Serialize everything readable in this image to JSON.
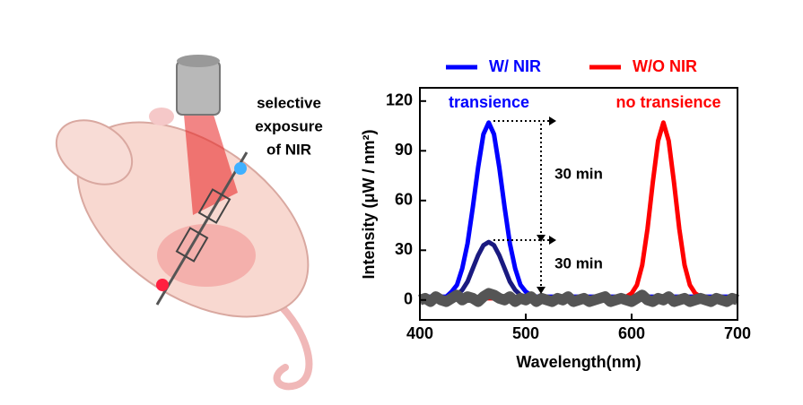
{
  "illustration": {
    "label_lines": [
      "selective",
      "exposure",
      "of NIR"
    ]
  },
  "chart_data": {
    "type": "line",
    "xlabel": "Wavelength(nm)",
    "ylabel": "Intensity (μW / nm²)",
    "annotations": [
      "transience",
      "no transience",
      "30 min",
      "30 min"
    ],
    "legend": "top",
    "xlim": [
      400,
      700
    ],
    "xticks": [
      400,
      500,
      600,
      700
    ],
    "ylim": [
      -12,
      128
    ],
    "yticks": [
      0,
      30,
      60,
      90,
      120
    ],
    "x": [
      400,
      405,
      410,
      415,
      420,
      425,
      430,
      435,
      440,
      445,
      450,
      455,
      460,
      465,
      470,
      475,
      480,
      485,
      490,
      495,
      500,
      505,
      510,
      515,
      520,
      525,
      530,
      535,
      540,
      545,
      550,
      555,
      560,
      565,
      570,
      575,
      580,
      585,
      590,
      595,
      600,
      605,
      610,
      615,
      620,
      625,
      630,
      635,
      640,
      645,
      650,
      655,
      660,
      665,
      670,
      675,
      680,
      685,
      690,
      695,
      700
    ],
    "series": [
      {
        "name": "W/ NIR",
        "color": "#0000ff",
        "values": [
          2,
          2,
          2,
          2,
          2,
          2,
          5,
          9,
          19,
          34,
          56,
          80,
          100,
          107,
          100,
          80,
          56,
          34,
          19,
          9,
          5,
          3,
          2,
          2,
          2,
          2,
          2,
          2,
          2,
          2,
          2,
          2,
          2,
          2,
          2,
          2,
          2,
          2,
          2,
          2,
          2,
          2,
          2,
          2,
          2,
          2,
          2,
          2,
          2,
          2,
          2,
          2,
          2,
          2,
          2,
          2,
          2,
          2,
          2,
          2,
          2
        ]
      },
      {
        "color": "#1a1a80",
        "values": [
          1,
          1,
          1,
          1,
          1,
          1,
          2,
          3,
          6,
          11,
          19,
          27,
          33,
          35,
          33,
          27,
          19,
          11,
          6,
          3,
          2,
          1,
          1,
          1,
          1,
          1,
          1,
          1,
          1,
          1,
          1,
          1,
          1,
          1,
          1,
          1,
          1,
          1,
          1,
          1,
          1,
          1,
          1,
          1,
          1,
          1,
          1,
          1,
          1,
          1,
          1,
          1,
          1,
          1,
          1,
          1,
          1,
          1,
          1,
          1,
          1
        ]
      },
      {
        "name": "W/O NIR",
        "color": "#ff0000",
        "values": [
          1,
          1,
          1,
          1,
          1,
          1,
          1,
          1,
          1,
          1,
          1,
          1,
          1,
          1,
          1,
          1,
          1,
          1,
          1,
          1,
          1,
          1,
          1,
          1,
          1,
          1,
          1,
          1,
          1,
          1,
          1,
          1,
          1,
          1,
          1,
          1,
          1,
          1,
          1,
          2,
          4,
          9,
          21,
          43,
          71,
          96,
          107,
          96,
          71,
          43,
          21,
          9,
          4,
          2,
          1,
          1,
          1,
          1,
          1,
          1,
          1
        ]
      },
      {
        "color": "#555555",
        "values": [
          0,
          1,
          -1,
          2,
          0,
          -1,
          1,
          3,
          0,
          2,
          1,
          -1,
          2,
          4,
          3,
          1,
          0,
          2,
          -1,
          1,
          0,
          2,
          -1,
          1,
          0,
          -1,
          1,
          0,
          2,
          -1,
          0,
          1,
          -1,
          0,
          1,
          2,
          -1,
          0,
          1,
          0,
          -1,
          1,
          3,
          0,
          -1,
          1,
          0,
          2,
          -1,
          0,
          1,
          -1,
          0,
          1,
          0,
          -1,
          1,
          0,
          -1,
          1,
          0
        ]
      }
    ]
  }
}
